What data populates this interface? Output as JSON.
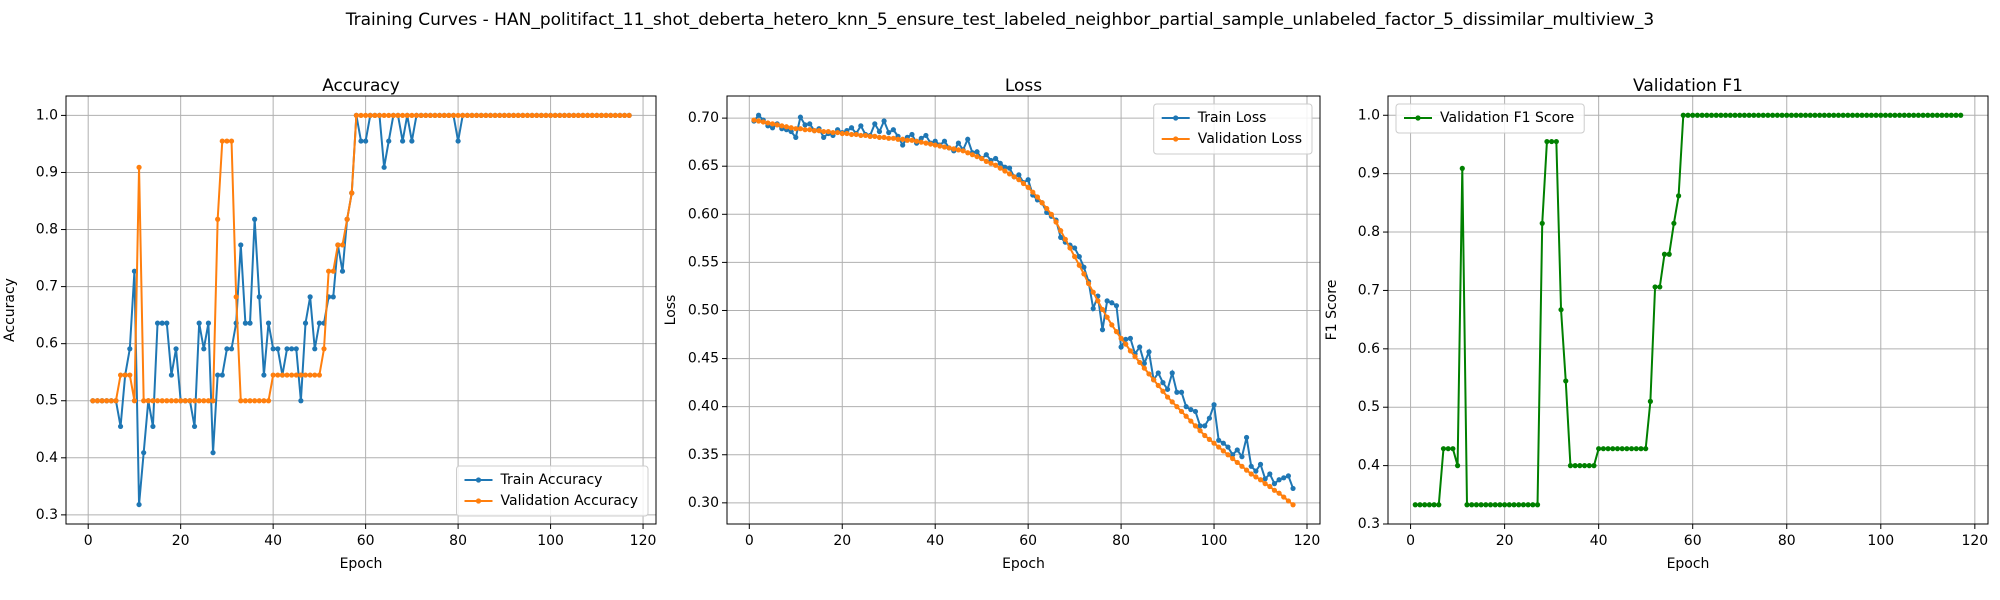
{
  "title": "Training Curves - HAN_politifact_11_shot_deberta_hetero_knn_5_ensure_test_labeled_neighbor_partial_sample_unlabeled_factor_5_dissimilar_multiview_3",
  "chart_data": [
    {
      "type": "line",
      "title": "Accuracy",
      "x_label": "Epoch",
      "y_label": "Accuracy",
      "x": [
        1,
        2,
        3,
        4,
        5,
        6,
        7,
        8,
        9,
        10,
        11,
        12,
        13,
        14,
        15,
        16,
        17,
        18,
        19,
        20,
        21,
        22,
        23,
        24,
        25,
        26,
        27,
        28,
        29,
        30,
        31,
        32,
        33,
        34,
        35,
        36,
        37,
        38,
        39,
        40,
        41,
        42,
        43,
        44,
        45,
        46,
        47,
        48,
        49,
        50,
        51,
        52,
        53,
        54,
        55,
        56,
        57,
        58,
        59,
        60,
        61,
        62,
        63,
        64,
        65,
        66,
        67,
        68,
        69,
        70,
        71,
        72,
        73,
        74,
        75,
        76,
        77,
        78,
        79,
        80,
        81,
        82,
        83,
        84,
        85,
        86,
        87,
        88,
        89,
        90,
        91,
        92,
        93,
        94,
        95,
        96,
        97,
        98,
        99,
        100,
        101,
        102,
        103,
        104,
        105,
        106,
        107,
        108,
        109,
        110,
        111,
        112,
        113,
        114,
        115,
        116,
        117
      ],
      "series": [
        {
          "name": "Train Accuracy",
          "color": "#1f77b4",
          "values": [
            0.5,
            0.5,
            0.5,
            0.5,
            0.5,
            0.5,
            0.455,
            0.545,
            0.591,
            0.727,
            0.318,
            0.409,
            0.5,
            0.455,
            0.636,
            0.636,
            0.636,
            0.545,
            0.591,
            0.5,
            0.5,
            0.5,
            0.455,
            0.636,
            0.591,
            0.636,
            0.409,
            0.545,
            0.545,
            0.591,
            0.591,
            0.636,
            0.773,
            0.636,
            0.636,
            0.818,
            0.682,
            0.545,
            0.636,
            0.591,
            0.591,
            0.545,
            0.591,
            0.591,
            0.591,
            0.5,
            0.636,
            0.682,
            0.591,
            0.636,
            0.636,
            0.682,
            0.682,
            0.773,
            0.727,
            0.818,
            0.864,
            1,
            0.955,
            0.955,
            1,
            1,
            1,
            0.909,
            0.955,
            1,
            1,
            0.955,
            1,
            0.955,
            1,
            1,
            1,
            1,
            1,
            1,
            1,
            1,
            1,
            0.955,
            1,
            1,
            1,
            1,
            1,
            1,
            1,
            1,
            1,
            1,
            1,
            1,
            1,
            1,
            1,
            1,
            1,
            1,
            1,
            1,
            1,
            1,
            1,
            1,
            1,
            1,
            1,
            1,
            1,
            1,
            1,
            1,
            1,
            1,
            1,
            1,
            1
          ]
        },
        {
          "name": "Validation Accuracy",
          "color": "#ff7f0e",
          "values": [
            0.5,
            0.5,
            0.5,
            0.5,
            0.5,
            0.5,
            0.545,
            0.545,
            0.545,
            0.5,
            0.909,
            0.5,
            0.5,
            0.5,
            0.5,
            0.5,
            0.5,
            0.5,
            0.5,
            0.5,
            0.5,
            0.5,
            0.5,
            0.5,
            0.5,
            0.5,
            0.5,
            0.818,
            0.955,
            0.955,
            0.955,
            0.682,
            0.5,
            0.5,
            0.5,
            0.5,
            0.5,
            0.5,
            0.5,
            0.545,
            0.545,
            0.545,
            0.545,
            0.545,
            0.545,
            0.545,
            0.545,
            0.545,
            0.545,
            0.545,
            0.591,
            0.727,
            0.727,
            0.773,
            0.773,
            0.818,
            0.864,
            1,
            1,
            1,
            1,
            1,
            1,
            1,
            1,
            1,
            1,
            1,
            1,
            1,
            1,
            1,
            1,
            1,
            1,
            1,
            1,
            1,
            1,
            1,
            1,
            1,
            1,
            1,
            1,
            1,
            1,
            1,
            1,
            1,
            1,
            1,
            1,
            1,
            1,
            1,
            1,
            1,
            1,
            1,
            1,
            1,
            1,
            1,
            1,
            1,
            1,
            1,
            1,
            1,
            1,
            1,
            1,
            1,
            1,
            1,
            1
          ]
        }
      ],
      "xlim": [
        -4.8,
        122.8
      ],
      "xticks": [
        0,
        20,
        40,
        60,
        80,
        100,
        120
      ],
      "ylim": [
        0.284,
        1.034
      ],
      "yticks": [
        0.3,
        0.4,
        0.5,
        0.6,
        0.7,
        0.8,
        0.9,
        {
          "value": 1,
          "label": "1.0"
        }
      ],
      "grid": true,
      "legend": "lower right"
    },
    {
      "type": "line",
      "title": "Loss",
      "x_label": "Epoch",
      "y_label": "Loss",
      "x": [
        1,
        2,
        3,
        4,
        5,
        6,
        7,
        8,
        9,
        10,
        11,
        12,
        13,
        14,
        15,
        16,
        17,
        18,
        19,
        20,
        21,
        22,
        23,
        24,
        25,
        26,
        27,
        28,
        29,
        30,
        31,
        32,
        33,
        34,
        35,
        36,
        37,
        38,
        39,
        40,
        41,
        42,
        43,
        44,
        45,
        46,
        47,
        48,
        49,
        50,
        51,
        52,
        53,
        54,
        55,
        56,
        57,
        58,
        59,
        60,
        61,
        62,
        63,
        64,
        65,
        66,
        67,
        68,
        69,
        70,
        71,
        72,
        73,
        74,
        75,
        76,
        77,
        78,
        79,
        80,
        81,
        82,
        83,
        84,
        85,
        86,
        87,
        88,
        89,
        90,
        91,
        92,
        93,
        94,
        95,
        96,
        97,
        98,
        99,
        100,
        101,
        102,
        103,
        104,
        105,
        106,
        107,
        108,
        109,
        110,
        111,
        112,
        113,
        114,
        115,
        116,
        117
      ],
      "series": [
        {
          "name": "Train Loss",
          "color": "#1f77b4",
          "values": [
            0.697,
            0.703,
            0.698,
            0.692,
            0.69,
            0.694,
            0.689,
            0.688,
            0.686,
            0.68,
            0.701,
            0.693,
            0.694,
            0.687,
            0.689,
            0.68,
            0.684,
            0.682,
            0.688,
            0.685,
            0.687,
            0.69,
            0.684,
            0.692,
            0.683,
            0.682,
            0.694,
            0.686,
            0.697,
            0.685,
            0.688,
            0.681,
            0.672,
            0.68,
            0.683,
            0.674,
            0.679,
            0.682,
            0.674,
            0.676,
            0.672,
            0.676,
            0.669,
            0.666,
            0.674,
            0.667,
            0.678,
            0.664,
            0.665,
            0.658,
            0.662,
            0.656,
            0.658,
            0.653,
            0.649,
            0.648,
            0.639,
            0.641,
            0.633,
            0.636,
            0.62,
            0.615,
            0.612,
            0.602,
            0.598,
            0.594,
            0.576,
            0.571,
            0.568,
            0.565,
            0.556,
            0.545,
            0.53,
            0.502,
            0.515,
            0.48,
            0.51,
            0.508,
            0.505,
            0.462,
            0.47,
            0.471,
            0.455,
            0.462,
            0.445,
            0.457,
            0.428,
            0.435,
            0.425,
            0.418,
            0.435,
            0.415,
            0.415,
            0.4,
            0.397,
            0.395,
            0.38,
            0.38,
            0.388,
            0.402,
            0.365,
            0.362,
            0.358,
            0.35,
            0.355,
            0.348,
            0.368,
            0.338,
            0.333,
            0.34,
            0.325,
            0.33,
            0.32,
            0.324,
            0.326,
            0.328,
            0.315
          ]
        },
        {
          "name": "Validation Loss",
          "color": "#ff7f0e",
          "values": [
            0.698,
            0.697,
            0.696,
            0.695,
            0.694,
            0.693,
            0.692,
            0.691,
            0.69,
            0.689,
            0.689,
            0.688,
            0.688,
            0.687,
            0.687,
            0.686,
            0.686,
            0.685,
            0.685,
            0.684,
            0.684,
            0.683,
            0.683,
            0.682,
            0.682,
            0.681,
            0.681,
            0.68,
            0.68,
            0.679,
            0.679,
            0.678,
            0.678,
            0.677,
            0.677,
            0.676,
            0.675,
            0.674,
            0.673,
            0.672,
            0.671,
            0.67,
            0.669,
            0.668,
            0.667,
            0.666,
            0.664,
            0.662,
            0.66,
            0.658,
            0.655,
            0.653,
            0.651,
            0.648,
            0.645,
            0.642,
            0.639,
            0.636,
            0.632,
            0.628,
            0.623,
            0.618,
            0.612,
            0.606,
            0.6,
            0.592,
            0.583,
            0.574,
            0.565,
            0.556,
            0.547,
            0.538,
            0.528,
            0.519,
            0.51,
            0.501,
            0.493,
            0.485,
            0.478,
            0.471,
            0.465,
            0.458,
            0.452,
            0.446,
            0.44,
            0.434,
            0.428,
            0.422,
            0.416,
            0.41,
            0.405,
            0.4,
            0.395,
            0.39,
            0.385,
            0.38,
            0.375,
            0.37,
            0.366,
            0.362,
            0.358,
            0.354,
            0.35,
            0.346,
            0.342,
            0.338,
            0.334,
            0.33,
            0.327,
            0.324,
            0.32,
            0.317,
            0.313,
            0.31,
            0.306,
            0.302,
            0.298
          ]
        }
      ],
      "xlim": [
        -4.8,
        122.8
      ],
      "xticks": [
        0,
        20,
        40,
        60,
        80,
        100,
        120
      ],
      "ylim": [
        0.278,
        0.723
      ],
      "yticks": [
        {
          "value": 0.3,
          "label": "0.30"
        },
        0.35,
        {
          "value": 0.4,
          "label": "0.40"
        },
        0.45,
        {
          "value": 0.5,
          "label": "0.50"
        },
        0.55,
        {
          "value": 0.6,
          "label": "0.60"
        },
        0.65,
        {
          "value": 0.7,
          "label": "0.70"
        }
      ],
      "grid": true,
      "legend": "upper right"
    },
    {
      "type": "line",
      "title": "Validation F1",
      "x_label": "Epoch",
      "y_label": "F1 Score",
      "x": [
        1,
        2,
        3,
        4,
        5,
        6,
        7,
        8,
        9,
        10,
        11,
        12,
        13,
        14,
        15,
        16,
        17,
        18,
        19,
        20,
        21,
        22,
        23,
        24,
        25,
        26,
        27,
        28,
        29,
        30,
        31,
        32,
        33,
        34,
        35,
        36,
        37,
        38,
        39,
        40,
        41,
        42,
        43,
        44,
        45,
        46,
        47,
        48,
        49,
        50,
        51,
        52,
        53,
        54,
        55,
        56,
        57,
        58,
        59,
        60,
        61,
        62,
        63,
        64,
        65,
        66,
        67,
        68,
        69,
        70,
        71,
        72,
        73,
        74,
        75,
        76,
        77,
        78,
        79,
        80,
        81,
        82,
        83,
        84,
        85,
        86,
        87,
        88,
        89,
        90,
        91,
        92,
        93,
        94,
        95,
        96,
        97,
        98,
        99,
        100,
        101,
        102,
        103,
        104,
        105,
        106,
        107,
        108,
        109,
        110,
        111,
        112,
        113,
        114,
        115,
        116,
        117
      ],
      "series": [
        {
          "name": "Validation F1 Score",
          "color": "#008000",
          "values": [
            0.333,
            0.333,
            0.333,
            0.333,
            0.333,
            0.333,
            0.429,
            0.429,
            0.429,
            0.4,
            0.909,
            0.333,
            0.333,
            0.333,
            0.333,
            0.333,
            0.333,
            0.333,
            0.333,
            0.333,
            0.333,
            0.333,
            0.333,
            0.333,
            0.333,
            0.333,
            0.333,
            0.815,
            0.955,
            0.955,
            0.955,
            0.667,
            0.545,
            0.4,
            0.4,
            0.4,
            0.4,
            0.4,
            0.4,
            0.429,
            0.429,
            0.429,
            0.429,
            0.429,
            0.429,
            0.429,
            0.429,
            0.429,
            0.429,
            0.429,
            0.51,
            0.706,
            0.706,
            0.762,
            0.762,
            0.815,
            0.862,
            1,
            1,
            1,
            1,
            1,
            1,
            1,
            1,
            1,
            1,
            1,
            1,
            1,
            1,
            1,
            1,
            1,
            1,
            1,
            1,
            1,
            1,
            1,
            1,
            1,
            1,
            1,
            1,
            1,
            1,
            1,
            1,
            1,
            1,
            1,
            1,
            1,
            1,
            1,
            1,
            1,
            1,
            1,
            1,
            1,
            1,
            1,
            1,
            1,
            1,
            1,
            1,
            1,
            1,
            1,
            1,
            1,
            1,
            1,
            1
          ]
        }
      ],
      "xlim": [
        -4.8,
        122.8
      ],
      "xticks": [
        0,
        20,
        40,
        60,
        80,
        100,
        120
      ],
      "ylim": [
        0.3,
        1.033
      ],
      "yticks": [
        0.3,
        0.4,
        0.5,
        0.6,
        0.7,
        0.8,
        0.9,
        {
          "value": 1,
          "label": "1.0"
        }
      ],
      "grid": true,
      "legend": "upper left"
    }
  ]
}
